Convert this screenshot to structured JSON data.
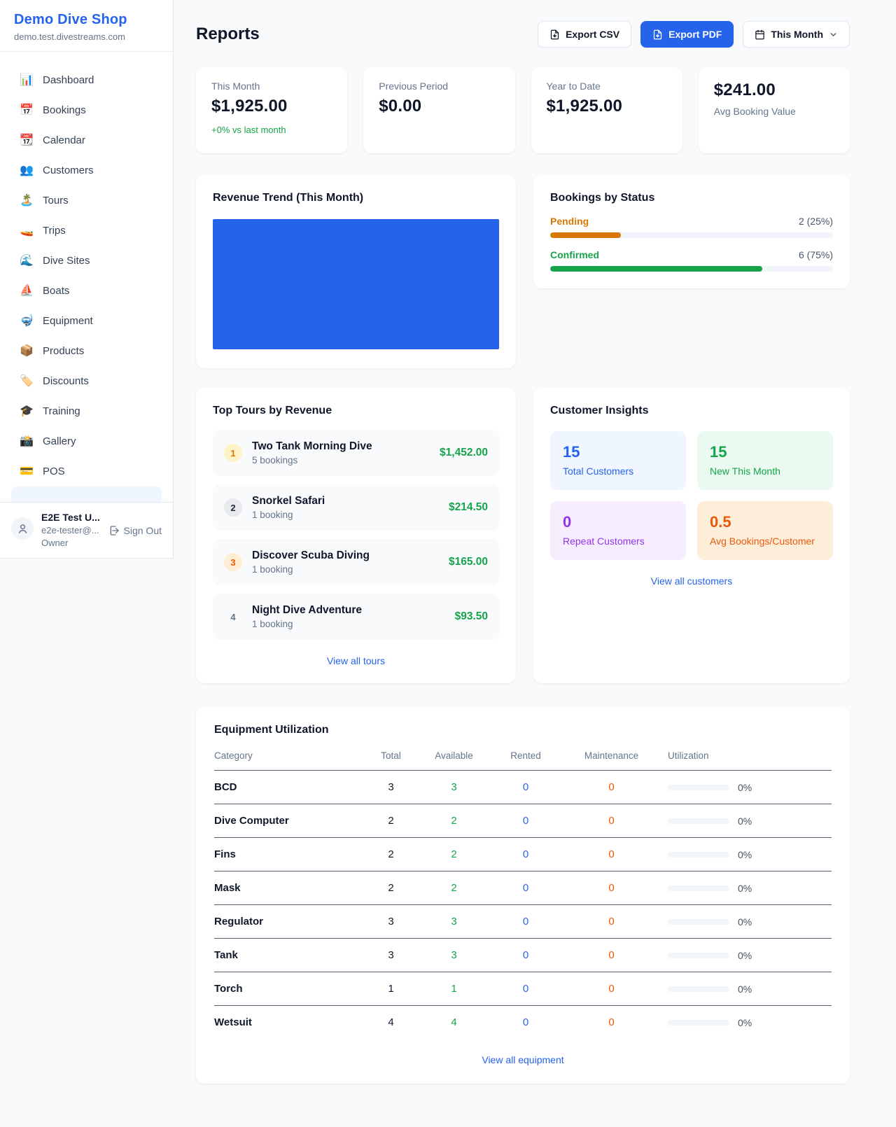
{
  "sidebar": {
    "brand": "Demo Dive Shop",
    "domain": "demo.test.divestreams.com",
    "items": [
      {
        "icon": "📊",
        "label": "Dashboard"
      },
      {
        "icon": "📅",
        "label": "Bookings"
      },
      {
        "icon": "📆",
        "label": "Calendar"
      },
      {
        "icon": "👥",
        "label": "Customers"
      },
      {
        "icon": "🏝️",
        "label": "Tours"
      },
      {
        "icon": "🚤",
        "label": "Trips"
      },
      {
        "icon": "🌊",
        "label": "Dive Sites"
      },
      {
        "icon": "⛵",
        "label": "Boats"
      },
      {
        "icon": "🤿",
        "label": "Equipment"
      },
      {
        "icon": "📦",
        "label": "Products"
      },
      {
        "icon": "🏷️",
        "label": "Discounts"
      },
      {
        "icon": "🎓",
        "label": "Training"
      },
      {
        "icon": "📸",
        "label": "Gallery"
      },
      {
        "icon": "💳",
        "label": "POS"
      }
    ],
    "user": {
      "name": "E2E Test U...",
      "email": "e2e-tester@...",
      "role": "Owner",
      "sign_out_label": "Sign Out"
    }
  },
  "header": {
    "title": "Reports",
    "export_csv_label": "Export CSV",
    "export_pdf_label": "Export PDF",
    "period_label": "This Month"
  },
  "stats": [
    {
      "label": "This Month",
      "value": "$1,925.00",
      "delta": "+0% vs last month"
    },
    {
      "label": "Previous Period",
      "value": "$0.00"
    },
    {
      "label": "Year to Date",
      "value": "$1,925.00"
    },
    {
      "label": "Avg Booking Value",
      "value": "$241.00",
      "value_first": true
    }
  ],
  "revenue_trend": {
    "title": "Revenue Trend (This Month)",
    "fill_color": "#2563eb"
  },
  "bookings_by_status": {
    "title": "Bookings by Status",
    "rows": [
      {
        "label": "Pending",
        "count_text": "2 (25%)",
        "percent": 25,
        "color": "#d97706"
      },
      {
        "label": "Confirmed",
        "count_text": "6 (75%)",
        "percent": 75,
        "color": "#16a34a"
      }
    ]
  },
  "top_tours": {
    "title": "Top Tours by Revenue",
    "view_all_label": "View all tours",
    "rows": [
      {
        "rank": "1",
        "name": "Two Tank Morning Dive",
        "bookings": "5 bookings",
        "amount": "$1,452.00",
        "badge_bg": "#fef3c7",
        "badge_color": "#d97706"
      },
      {
        "rank": "2",
        "name": "Snorkel Safari",
        "bookings": "1 booking",
        "amount": "$214.50",
        "badge_bg": "#e9eaee",
        "badge_color": "#1e293b"
      },
      {
        "rank": "3",
        "name": "Discover Scuba Diving",
        "bookings": "1 booking",
        "amount": "$165.00",
        "badge_bg": "#ffedd5",
        "badge_color": "#ea580c"
      },
      {
        "rank": "4",
        "name": "Night Dive Adventure",
        "bookings": "1 booking",
        "amount": "$93.50",
        "badge_bg": "transparent",
        "badge_color": "#64748b"
      }
    ]
  },
  "customer_insights": {
    "title": "Customer Insights",
    "view_all_label": "View all customers",
    "tiles": [
      {
        "value": "15",
        "label": "Total Customers",
        "bg": "#eff6ff",
        "color": "#2563eb"
      },
      {
        "value": "15",
        "label": "New This Month",
        "bg": "#eafaf1",
        "color": "#16a34a"
      },
      {
        "value": "0",
        "label": "Repeat Customers",
        "bg": "#f6eefe",
        "color": "#9333ea"
      },
      {
        "value": "0.5",
        "label": "Avg Bookings/Customer",
        "bg": "#fdeeda",
        "color": "#ea580c"
      }
    ]
  },
  "equipment": {
    "title": "Equipment Utilization",
    "view_all_label": "View all equipment",
    "columns": [
      "Category",
      "Total",
      "Available",
      "Rented",
      "Maintenance",
      "Utilization"
    ],
    "rows": [
      {
        "category": "BCD",
        "total": "3",
        "available": "3",
        "rented": "0",
        "maintenance": "0",
        "utilization": "0%"
      },
      {
        "category": "Dive Computer",
        "total": "2",
        "available": "2",
        "rented": "0",
        "maintenance": "0",
        "utilization": "0%"
      },
      {
        "category": "Fins",
        "total": "2",
        "available": "2",
        "rented": "0",
        "maintenance": "0",
        "utilization": "0%"
      },
      {
        "category": "Mask",
        "total": "2",
        "available": "2",
        "rented": "0",
        "maintenance": "0",
        "utilization": "0%"
      },
      {
        "category": "Regulator",
        "total": "3",
        "available": "3",
        "rented": "0",
        "maintenance": "0",
        "utilization": "0%"
      },
      {
        "category": "Tank",
        "total": "3",
        "available": "3",
        "rented": "0",
        "maintenance": "0",
        "utilization": "0%"
      },
      {
        "category": "Torch",
        "total": "1",
        "available": "1",
        "rented": "0",
        "maintenance": "0",
        "utilization": "0%"
      },
      {
        "category": "Wetsuit",
        "total": "4",
        "available": "4",
        "rented": "0",
        "maintenance": "0",
        "utilization": "0%"
      }
    ]
  },
  "chart_data": [
    {
      "type": "bar",
      "title": "Bookings by Status",
      "categories": [
        "Pending",
        "Confirmed"
      ],
      "values": [
        2,
        6
      ],
      "value_labels": [
        "2 (25%)",
        "6 (75%)"
      ],
      "colors": [
        "#d97706",
        "#16a34a"
      ]
    },
    {
      "type": "area",
      "title": "Revenue Trend (This Month)",
      "note": "solid blue filled block, no axes or labels visible",
      "fill": "#2563eb"
    }
  ]
}
